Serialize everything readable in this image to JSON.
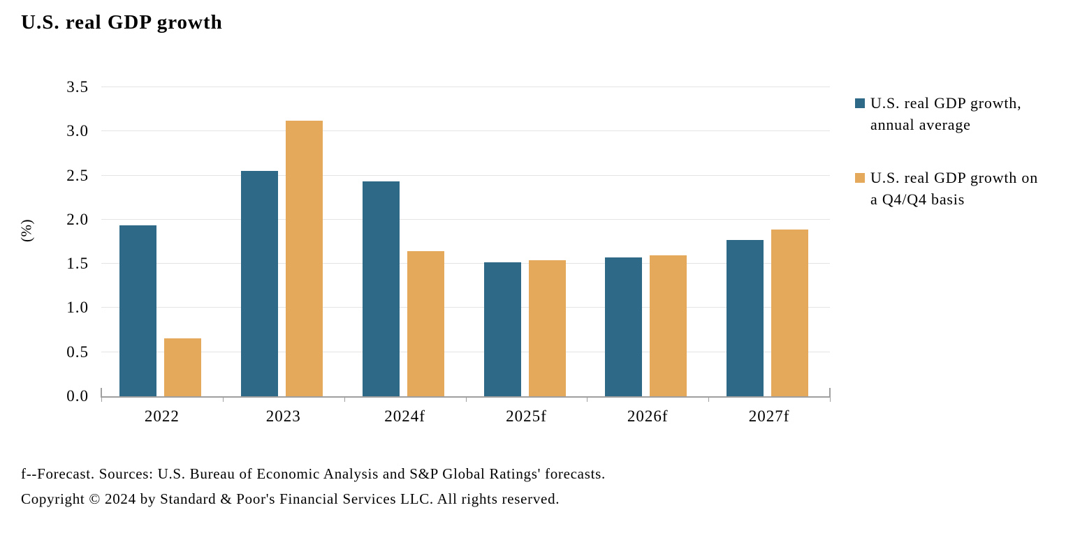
{
  "page": {
    "title": "U.S. real GDP growth",
    "footnote": "f--Forecast. Sources: U.S. Bureau of Economic Analysis and S&P Global Ratings' forecasts.",
    "copyright": "Copyright © 2024 by Standard & Poor's Financial Services LLC. All rights reserved."
  },
  "chart_data": {
    "type": "bar",
    "title": "U.S. real GDP growth",
    "xlabel": "",
    "ylabel": "(%)",
    "ylim": [
      0,
      3.5
    ],
    "ytick_step": 0.5,
    "yticks": [
      "0.0",
      "0.5",
      "1.0",
      "1.5",
      "2.0",
      "2.5",
      "3.0",
      "3.5"
    ],
    "grid": "horizontal",
    "legend_position": "right",
    "categories": [
      "2022",
      "2023",
      "2024f",
      "2025f",
      "2026f",
      "2027f"
    ],
    "series": [
      {
        "name": "U.S. real GDP growth, annual average",
        "color": "#2E6A87",
        "values": [
          1.94,
          2.55,
          2.43,
          1.52,
          1.57,
          1.77
        ]
      },
      {
        "name": "U.S. real GDP growth on a Q4/Q4 basis",
        "color": "#E5A95C",
        "values": [
          0.66,
          3.12,
          1.64,
          1.54,
          1.6,
          1.89
        ]
      }
    ],
    "legend": [
      {
        "lines": [
          "U.S. real GDP growth,",
          "annual average"
        ]
      },
      {
        "lines": [
          "U.S. real GDP growth on",
          "a Q4/Q4 basis"
        ]
      }
    ]
  }
}
